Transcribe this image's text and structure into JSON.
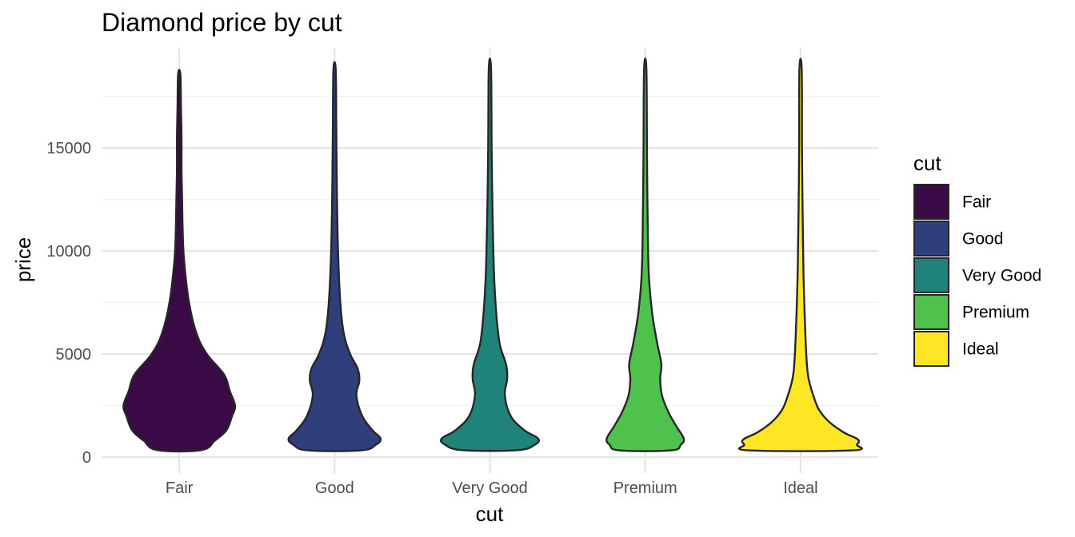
{
  "chart_data": {
    "type": "violin",
    "title": "Diamond price by cut",
    "xlabel": "cut",
    "ylabel": "price",
    "ylim": [
      -300,
      19500
    ],
    "yticks": [
      0,
      5000,
      10000,
      15000
    ],
    "y_minor_ticks": [
      2500,
      7500,
      12500,
      17500
    ],
    "grid": true,
    "categories": [
      "Fair",
      "Good",
      "Very Good",
      "Premium",
      "Ideal"
    ],
    "colors": [
      "#3a0a46",
      "#2e3f7b",
      "#20837a",
      "#4fc24d",
      "#fde724"
    ],
    "legend": {
      "title": "cut",
      "position": "right"
    },
    "series": [
      {
        "category": "Fair",
        "min": 337,
        "max": 18574,
        "density_profile": [
          [
            337,
            0.38
          ],
          [
            800,
            0.62
          ],
          [
            1300,
            0.82
          ],
          [
            2000,
            0.92
          ],
          [
            2500,
            0.97
          ],
          [
            3200,
            0.88
          ],
          [
            4000,
            0.78
          ],
          [
            5000,
            0.48
          ],
          [
            6000,
            0.3
          ],
          [
            7500,
            0.17
          ],
          [
            9500,
            0.085
          ],
          [
            11000,
            0.06
          ],
          [
            12500,
            0.05
          ],
          [
            14000,
            0.04
          ],
          [
            15500,
            0.04
          ],
          [
            17000,
            0.03
          ],
          [
            18574,
            0.02
          ]
        ]
      },
      {
        "category": "Good",
        "min": 327,
        "max": 18788,
        "density_profile": [
          [
            327,
            0.46
          ],
          [
            600,
            0.72
          ],
          [
            900,
            0.8
          ],
          [
            1300,
            0.66
          ],
          [
            2000,
            0.48
          ],
          [
            3000,
            0.38
          ],
          [
            3700,
            0.43
          ],
          [
            4300,
            0.4
          ],
          [
            5000,
            0.27
          ],
          [
            6000,
            0.16
          ],
          [
            7500,
            0.1
          ],
          [
            10000,
            0.06
          ],
          [
            13000,
            0.04
          ],
          [
            16000,
            0.03
          ],
          [
            18788,
            0.02
          ]
        ]
      },
      {
        "category": "Very Good",
        "min": 336,
        "max": 18818,
        "density_profile": [
          [
            336,
            0.48
          ],
          [
            600,
            0.78
          ],
          [
            900,
            0.84
          ],
          [
            1300,
            0.6
          ],
          [
            2000,
            0.36
          ],
          [
            3000,
            0.26
          ],
          [
            3800,
            0.3
          ],
          [
            4500,
            0.28
          ],
          [
            5500,
            0.17
          ],
          [
            7000,
            0.11
          ],
          [
            9000,
            0.07
          ],
          [
            12000,
            0.045
          ],
          [
            15000,
            0.03
          ],
          [
            18818,
            0.02
          ]
        ]
      },
      {
        "category": "Premium",
        "min": 326,
        "max": 18823,
        "density_profile": [
          [
            326,
            0.45
          ],
          [
            600,
            0.62
          ],
          [
            900,
            0.67
          ],
          [
            1500,
            0.54
          ],
          [
            2200,
            0.4
          ],
          [
            3000,
            0.29
          ],
          [
            3800,
            0.26
          ],
          [
            4500,
            0.28
          ],
          [
            5500,
            0.21
          ],
          [
            7000,
            0.12
          ],
          [
            9000,
            0.06
          ],
          [
            12000,
            0.04
          ],
          [
            15000,
            0.03
          ],
          [
            18823,
            0.02
          ]
        ]
      },
      {
        "category": "Ideal",
        "min": 326,
        "max": 18806,
        "density_profile": [
          [
            326,
            0.9
          ],
          [
            600,
            0.98
          ],
          [
            850,
            1.0
          ],
          [
            1200,
            0.75
          ],
          [
            1700,
            0.5
          ],
          [
            2300,
            0.32
          ],
          [
            3000,
            0.22
          ],
          [
            3800,
            0.14
          ],
          [
            4500,
            0.11
          ],
          [
            5500,
            0.09
          ],
          [
            7000,
            0.07
          ],
          [
            9000,
            0.05
          ],
          [
            12000,
            0.035
          ],
          [
            15000,
            0.025
          ],
          [
            18806,
            0.02
          ]
        ]
      }
    ]
  }
}
